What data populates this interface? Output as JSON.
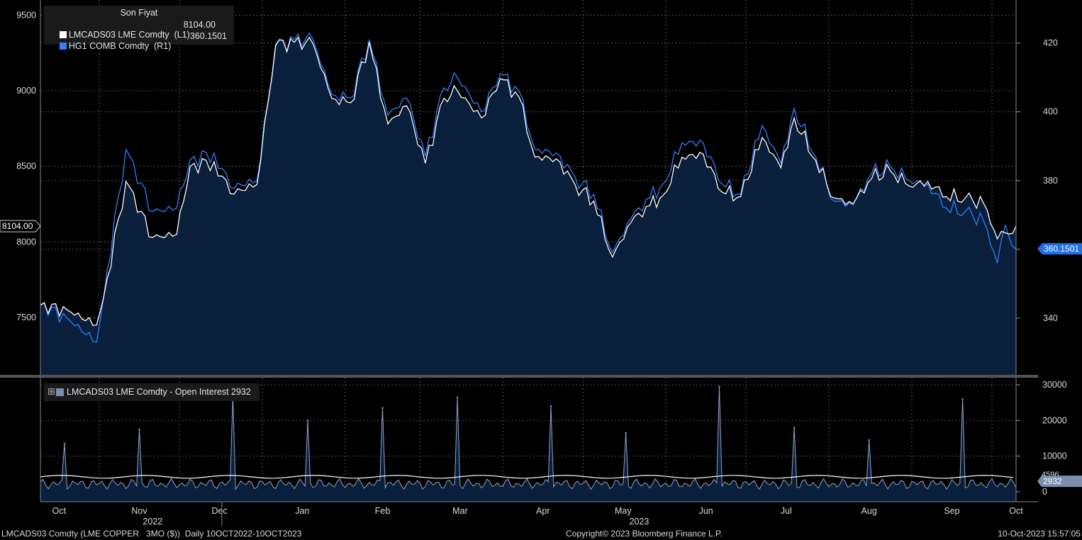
{
  "legend": {
    "title": "Son Fiyat",
    "series1_label": "LMCADS03 LME Comdty  (L1)",
    "series1_value": "8104.00",
    "series2_label": "HG1 COMB Comdty  (R1)",
    "series2_value": "360.1501"
  },
  "oi_legend": {
    "label": "LMCADS03 LME Comdty - Open Interest 2932",
    "expand_glyph": "⊞"
  },
  "last_price_tags": {
    "left": "8104.00",
    "right": "360.1501",
    "oi": "2932",
    "oi_partial": "4596"
  },
  "x_axis": {
    "months": [
      "Oct",
      "Nov",
      "Dec",
      "Jan",
      "Feb",
      "Mar",
      "Apr",
      "May",
      "Jun",
      "Jul",
      "Aug",
      "Sep",
      "Oct"
    ],
    "years": [
      "2022",
      "2023"
    ]
  },
  "footer": {
    "left": "LMCADS03 Comdty (LME COPPER   3MO ($))  Daily 10OCT2022-10OCT2023",
    "center": "Copyright© 2023 Bloomberg Finance L.P.",
    "right": "10-Oct-2023 15:57:05"
  },
  "colors": {
    "background": "#000000",
    "area_fill": "#0a1f3c",
    "lme_line": "#ffffff",
    "hg_line": "#2f7fff",
    "oi_line": "#8ea3c4",
    "grid": "#555555"
  },
  "chart_data": [
    {
      "type": "line",
      "title": "Son Fiyat",
      "x_range": [
        "2022-10-10",
        "2023-10-10"
      ],
      "y_left_ticks": [
        7500,
        8000,
        8500,
        9000,
        9500
      ],
      "y_right_ticks": [
        340,
        360,
        380,
        400,
        420
      ],
      "ylim_left": [
        7120,
        9600
      ],
      "ylim_right": [
        323.5,
        432.5
      ],
      "series": [
        {
          "name": "LMCADS03 LME Comdty (L1)",
          "axis": "left",
          "x": [
            "2022-10-10",
            "2022-10-20",
            "2022-10-31",
            "2022-11-04",
            "2022-11-11",
            "2022-11-21",
            "2022-11-30",
            "2022-12-05",
            "2022-12-14",
            "2022-12-20",
            "2022-12-30",
            "2023-01-06",
            "2023-01-13",
            "2023-01-20",
            "2023-01-27",
            "2023-02-03",
            "2023-02-10",
            "2023-02-17",
            "2023-02-24",
            "2023-03-03",
            "2023-03-10",
            "2023-03-15",
            "2023-03-24",
            "2023-03-31",
            "2023-04-07",
            "2023-04-13",
            "2023-04-21",
            "2023-04-28",
            "2023-05-05",
            "2023-05-12",
            "2023-05-19",
            "2023-05-26",
            "2023-05-31",
            "2023-06-07",
            "2023-06-15",
            "2023-06-22",
            "2023-06-29",
            "2023-07-07",
            "2023-07-14",
            "2023-07-19",
            "2023-07-27",
            "2023-08-03",
            "2023-08-10",
            "2023-08-17",
            "2023-08-24",
            "2023-08-31",
            "2023-09-07",
            "2023-09-14",
            "2023-09-21",
            "2023-09-28",
            "2023-10-03",
            "2023-10-06",
            "2023-10-10"
          ],
          "values": [
            7580,
            7550,
            7450,
            7760,
            8400,
            8030,
            8050,
            8500,
            8530,
            8320,
            8380,
            9300,
            9320,
            9310,
            8950,
            8920,
            9320,
            8780,
            8900,
            8520,
            8950,
            9000,
            8820,
            9080,
            8960,
            8560,
            8550,
            8380,
            8270,
            7900,
            8130,
            8240,
            8310,
            8560,
            8580,
            8330,
            8300,
            8690,
            8490,
            8820,
            8540,
            8290,
            8250,
            8420,
            8470,
            8370,
            8400,
            8300,
            8290,
            8250,
            8020,
            8060,
            8104
          ]
        },
        {
          "name": "HG1 COMB Comdty (R1)",
          "axis": "right",
          "x": [
            "2022-10-10",
            "2022-10-20",
            "2022-10-31",
            "2022-11-04",
            "2022-11-11",
            "2022-11-21",
            "2022-11-30",
            "2022-12-05",
            "2022-12-14",
            "2022-12-20",
            "2022-12-30",
            "2023-01-06",
            "2023-01-13",
            "2023-01-20",
            "2023-01-27",
            "2023-02-03",
            "2023-02-10",
            "2023-02-17",
            "2023-02-24",
            "2023-03-03",
            "2023-03-10",
            "2023-03-15",
            "2023-03-24",
            "2023-03-31",
            "2023-04-07",
            "2023-04-13",
            "2023-04-21",
            "2023-04-28",
            "2023-05-05",
            "2023-05-12",
            "2023-05-19",
            "2023-05-26",
            "2023-05-31",
            "2023-06-07",
            "2023-06-15",
            "2023-06-22",
            "2023-06-29",
            "2023-07-07",
            "2023-07-14",
            "2023-07-19",
            "2023-07-27",
            "2023-08-03",
            "2023-08-10",
            "2023-08-17",
            "2023-08-24",
            "2023-08-31",
            "2023-09-07",
            "2023-09-14",
            "2023-09-21",
            "2023-09-28",
            "2023-10-03",
            "2023-10-06",
            "2023-10-10"
          ],
          "values": [
            344,
            340,
            333,
            354,
            389,
            371,
            372,
            386,
            388,
            378,
            380,
            419,
            421,
            421,
            405,
            404,
            421,
            399,
            404,
            387,
            407,
            410,
            400,
            411,
            406,
            389,
            388,
            381,
            376,
            359,
            369,
            375,
            379,
            391,
            391,
            379,
            376,
            396,
            385,
            401,
            387,
            374,
            373,
            382,
            384,
            380,
            379,
            372,
            371,
            368,
            356,
            367,
            360.15
          ]
        }
      ]
    },
    {
      "type": "area",
      "title": "LMCADS03 LME Comdty - Open Interest",
      "y_ticks": [
        0,
        10000,
        20000,
        30000
      ],
      "ylim": [
        -2800,
        32000
      ],
      "series": [
        {
          "name": "Open Interest",
          "spikes": [
            {
              "date": "2022-10-19",
              "value": 13500
            },
            {
              "date": "2022-11-16",
              "value": 17500
            },
            {
              "date": "2022-12-21",
              "value": 27000
            },
            {
              "date": "2023-01-18",
              "value": 20000
            },
            {
              "date": "2023-02-15",
              "value": 23500
            },
            {
              "date": "2023-03-15",
              "value": 26500
            },
            {
              "date": "2023-04-19",
              "value": 24000
            },
            {
              "date": "2023-05-17",
              "value": 16500
            },
            {
              "date": "2023-06-21",
              "value": 29500
            },
            {
              "date": "2023-07-19",
              "value": 18000
            },
            {
              "date": "2023-08-16",
              "value": 14500
            },
            {
              "date": "2023-09-20",
              "value": 26000
            }
          ],
          "baseline_level": 2200,
          "last": 2932
        },
        {
          "name": "Open Interest (avg)",
          "baseline_level": 4200,
          "last": 4596
        }
      ]
    }
  ]
}
